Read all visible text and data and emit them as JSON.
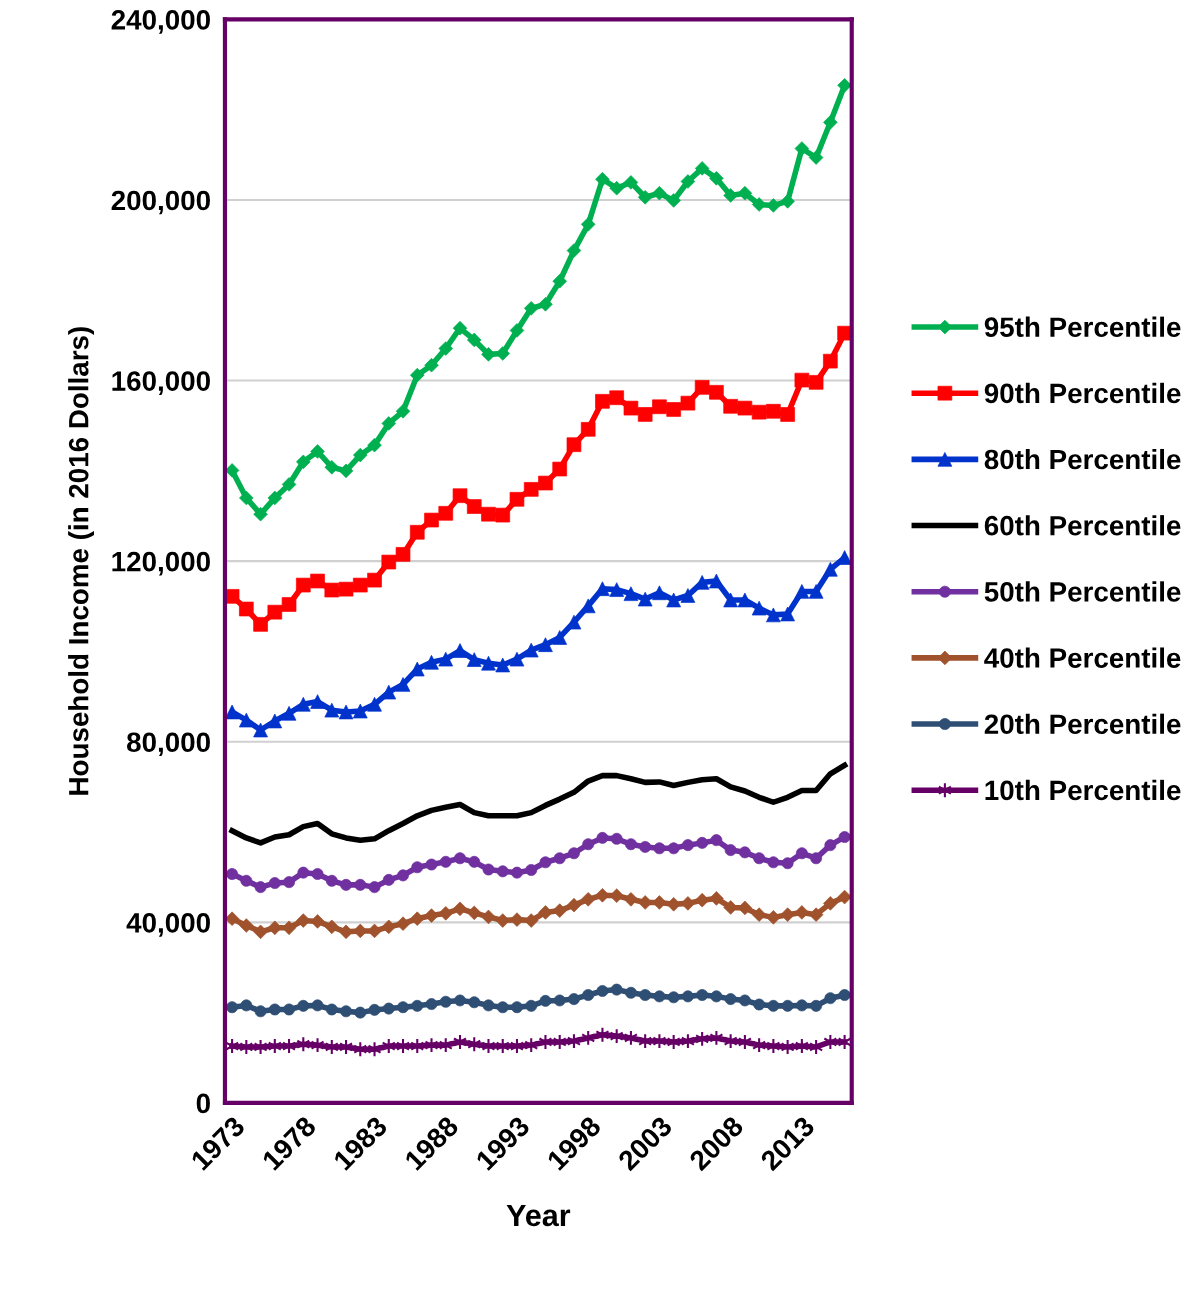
{
  "chart_data": {
    "type": "line",
    "xlabel": "Year",
    "ylabel": "Household Income (in 2016 Dollars)",
    "categories": [
      "1973",
      null,
      null,
      null,
      null,
      "1978",
      null,
      null,
      null,
      null,
      "1983",
      null,
      null,
      null,
      null,
      "1988",
      null,
      null,
      null,
      null,
      "1993",
      null,
      null,
      null,
      null,
      "1998",
      null,
      null,
      null,
      null,
      "2003",
      null,
      null,
      null,
      null,
      "2008",
      null,
      null,
      null,
      null,
      "2013",
      null,
      null,
      null
    ],
    "ylim": [
      0,
      240000
    ],
    "yticks": [
      {
        "value": 0,
        "label": "0"
      },
      {
        "value": 40000,
        "label": "40,000"
      },
      {
        "value": 80000,
        "label": "80,000"
      },
      {
        "value": 120000,
        "label": "120,000"
      },
      {
        "value": 160000,
        "label": "160,000"
      },
      {
        "value": 200000,
        "label": "200,000"
      },
      {
        "value": 240000,
        "label": "240,000"
      }
    ],
    "grid": "y",
    "legend": "right",
    "series": [
      {
        "name": "95th Percentile",
        "color": "#00b050",
        "marker": "diamond",
        "values": [
          140100,
          134000,
          130400,
          134000,
          137000,
          142000,
          144300,
          140800,
          140000,
          143500,
          145700,
          150500,
          153200,
          161200,
          163400,
          167100,
          171600,
          169000,
          165800,
          166000,
          171100,
          176000,
          176900,
          182000,
          188800,
          194600,
          204600,
          202600,
          203900,
          200600,
          201500,
          199900,
          204100,
          207000,
          204800,
          201000,
          201500,
          199000,
          198800,
          199700,
          211400,
          209400,
          217200,
          225400
        ]
      },
      {
        "name": "90th Percentile",
        "color": "#ff0000",
        "marker": "square",
        "values": [
          112200,
          109400,
          106000,
          108700,
          110400,
          114700,
          115600,
          113600,
          113800,
          114700,
          115800,
          119800,
          121500,
          126400,
          129100,
          130600,
          134500,
          132100,
          130400,
          130200,
          133700,
          135900,
          137300,
          140400,
          145800,
          149200,
          155400,
          156200,
          153900,
          152500,
          154200,
          153600,
          155000,
          158500,
          157400,
          154300,
          153900,
          153000,
          153200,
          152500,
          160100,
          159600,
          164300,
          170500
        ]
      },
      {
        "name": "80th Percentile",
        "color": "#0033cc",
        "marker": "triangle",
        "values": [
          86600,
          84800,
          82600,
          84600,
          86300,
          88300,
          88900,
          87000,
          86600,
          86800,
          88300,
          91000,
          92700,
          96100,
          97600,
          98300,
          100200,
          98200,
          97400,
          97000,
          98300,
          100300,
          101500,
          103100,
          106500,
          110100,
          113900,
          113700,
          112800,
          111600,
          113000,
          111400,
          112400,
          115300,
          115600,
          111400,
          111400,
          109600,
          108100,
          108300,
          113300,
          113300,
          118200,
          120800
        ]
      },
      {
        "name": "60th Percentile",
        "color": "#000000",
        "marker": "none",
        "values": [
          60300,
          58700,
          57600,
          58900,
          59400,
          61200,
          61900,
          59600,
          58700,
          58200,
          58500,
          60300,
          61900,
          63600,
          64800,
          65500,
          66100,
          64300,
          63600,
          63600,
          63600,
          64300,
          65900,
          67300,
          68800,
          71300,
          72500,
          72500,
          71800,
          71000,
          71100,
          70300,
          71000,
          71600,
          71800,
          70000,
          69100,
          67700,
          66600,
          67700,
          69200,
          69200,
          72900,
          74800
        ]
      },
      {
        "name": "50th Percentile",
        "color": "#7030a0",
        "marker": "circle",
        "values": [
          50700,
          49200,
          47800,
          48700,
          48900,
          51000,
          50700,
          49200,
          48300,
          48300,
          47800,
          49400,
          50400,
          52200,
          52800,
          53400,
          54200,
          53400,
          51700,
          51300,
          51000,
          51600,
          53300,
          54200,
          55300,
          57300,
          58700,
          58500,
          57300,
          56700,
          56400,
          56400,
          57100,
          57600,
          58200,
          56000,
          55500,
          54200,
          53300,
          53100,
          55300,
          54200,
          57100,
          58900
        ]
      },
      {
        "name": "40th Percentile",
        "color": "#a0522d",
        "marker": "diamond",
        "values": [
          40800,
          39300,
          37900,
          38800,
          38800,
          40400,
          40200,
          39000,
          37900,
          38100,
          38100,
          39000,
          39700,
          40800,
          41500,
          42000,
          43000,
          42100,
          41200,
          40400,
          40600,
          40400,
          42200,
          42600,
          43800,
          45100,
          46000,
          45900,
          45100,
          44400,
          44400,
          44000,
          44200,
          44900,
          45300,
          43300,
          43200,
          41700,
          41100,
          41700,
          42200,
          41700,
          44200,
          45600
        ]
      },
      {
        "name": "20th Percentile",
        "color": "#2e4e74",
        "marker": "circle",
        "values": [
          21200,
          21600,
          20300,
          20700,
          20700,
          21500,
          21600,
          20700,
          20300,
          20000,
          20600,
          20900,
          21200,
          21500,
          21900,
          22400,
          22700,
          22300,
          21600,
          21200,
          21200,
          21500,
          22600,
          22700,
          23000,
          23900,
          24800,
          25100,
          24400,
          23900,
          23600,
          23400,
          23600,
          23900,
          23600,
          23000,
          22700,
          21800,
          21500,
          21500,
          21600,
          21500,
          23200,
          23900
        ]
      },
      {
        "name": "10th Percentile",
        "color": "#660066",
        "marker": "cross",
        "values": [
          12600,
          12400,
          12400,
          12600,
          12600,
          13000,
          12800,
          12400,
          12400,
          11900,
          11900,
          12600,
          12600,
          12600,
          12800,
          12800,
          13500,
          13000,
          12600,
          12600,
          12600,
          12800,
          13500,
          13500,
          13700,
          14400,
          15100,
          14800,
          14400,
          13700,
          13700,
          13500,
          13700,
          14200,
          14400,
          13700,
          13500,
          12800,
          12600,
          12400,
          12600,
          12400,
          13500,
          13500
        ]
      }
    ]
  }
}
